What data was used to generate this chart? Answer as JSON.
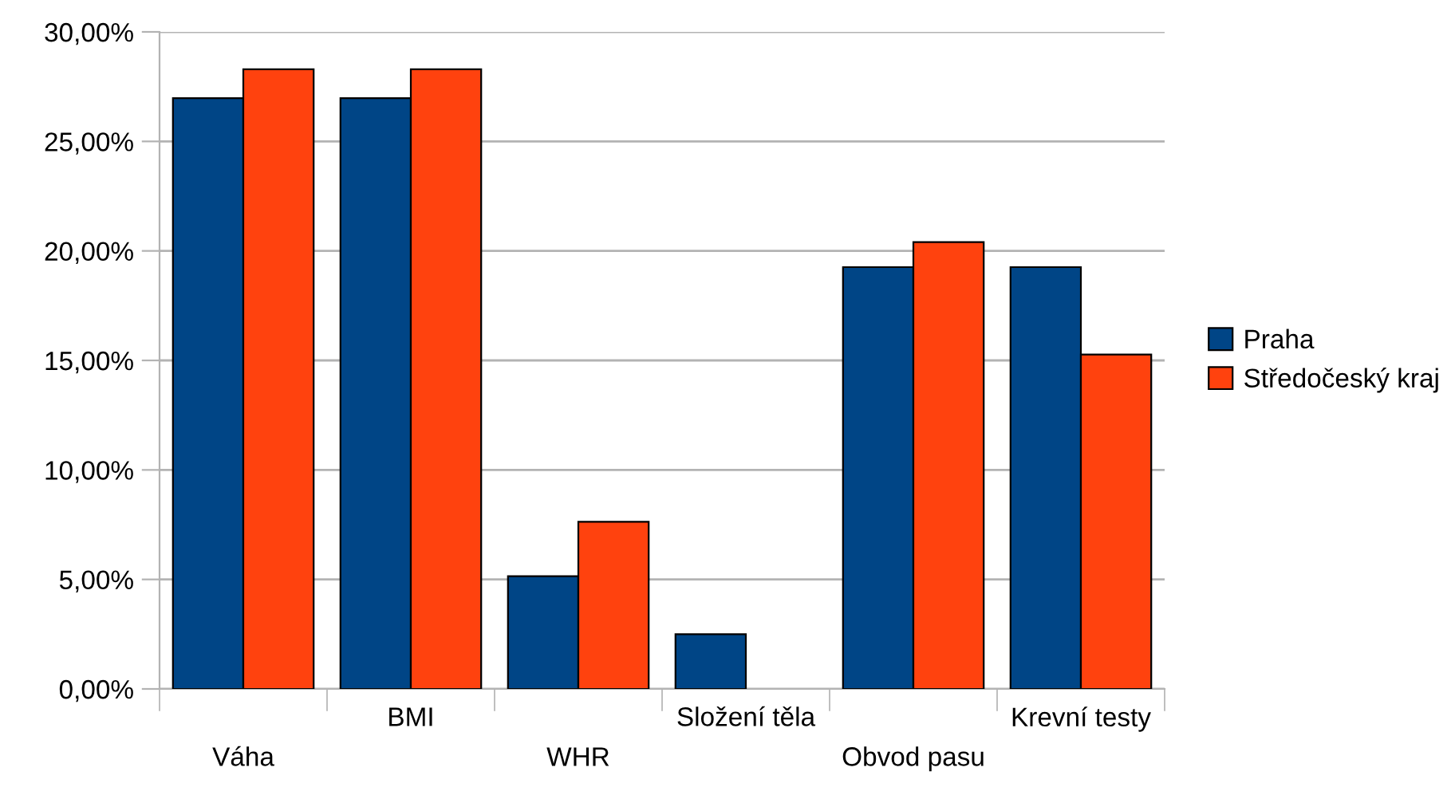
{
  "chart_data": {
    "type": "bar",
    "categories": [
      "Váha",
      "BMI",
      "WHR",
      "Složení těla",
      "Obvod pasu",
      "Krevní testy"
    ],
    "series": [
      {
        "name": "Praha",
        "color": "#004586",
        "values": [
          26.97,
          26.97,
          5.15,
          2.5,
          19.26,
          19.26
        ]
      },
      {
        "name": "Středočeský kraj",
        "color": "#ff420e",
        "values": [
          28.29,
          28.29,
          7.63,
          null,
          20.4,
          15.27
        ]
      }
    ],
    "ylim": [
      0,
      30
    ],
    "yticks": [
      {
        "value": 0,
        "label": "0,00%"
      },
      {
        "value": 5,
        "label": "5,00%"
      },
      {
        "value": 10,
        "label": "10,00%"
      },
      {
        "value": 15,
        "label": "15,00%"
      },
      {
        "value": 20,
        "label": "20,00%"
      },
      {
        "value": 25,
        "label": "25,00%"
      },
      {
        "value": 30,
        "label": "30,00%"
      }
    ],
    "grid": "y",
    "legend": "right"
  }
}
